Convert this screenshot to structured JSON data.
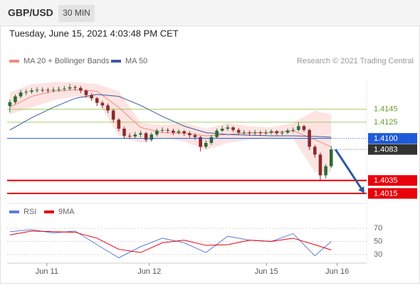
{
  "chart_data": {
    "type": "candlestick",
    "title": "GBP/USD",
    "timeframe": "30 MIN",
    "subtitle": "Tuesday, June 15, 2021 4:03:48 PM CET",
    "credit": "Research © 2021 Trading Central",
    "up_color": "#2d6a36",
    "down_color": "#8b2a2a",
    "xlim": [
      -0.5,
      65.5
    ],
    "xticks": [
      {
        "value": 6.8,
        "label": "Jun 11"
      },
      {
        "value": 25.6,
        "label": "Jun 12"
      },
      {
        "value": 47.1,
        "label": "Jun 15"
      },
      {
        "value": 60.1,
        "label": "Jun 16"
      }
    ],
    "ylim": [
      1.4004,
      1.4193
    ],
    "x": [
      0,
      1,
      2,
      3,
      4,
      5,
      6,
      7,
      8,
      9,
      10,
      11,
      12,
      13,
      14,
      15,
      16,
      17,
      18,
      19,
      20,
      21,
      22,
      23,
      24,
      25,
      26,
      27,
      28,
      29,
      30,
      31,
      32,
      33,
      34,
      35,
      36,
      37,
      38,
      39,
      40,
      41,
      42,
      43,
      44,
      45,
      46,
      47,
      48,
      49,
      50,
      51,
      52,
      53,
      54,
      55,
      56,
      57,
      58,
      59
    ],
    "open": [
      1.415,
      1.4156,
      1.4165,
      1.4171,
      1.4172,
      1.4174,
      1.4175,
      1.4175,
      1.4174,
      1.4175,
      1.4176,
      1.4177,
      1.4179,
      1.4178,
      1.4174,
      1.4167,
      1.4162,
      1.4155,
      1.4151,
      1.4143,
      1.4129,
      1.4115,
      1.4104,
      1.4103,
      1.4106,
      1.4108,
      1.4098,
      1.4106,
      1.4112,
      1.4113,
      1.4112,
      1.4109,
      1.4111,
      1.4108,
      1.4105,
      1.4102,
      1.4087,
      1.4093,
      1.4102,
      1.4112,
      1.4115,
      1.4117,
      1.4113,
      1.4109,
      1.4109,
      1.4108,
      1.4109,
      1.4108,
      1.4109,
      1.4111,
      1.4108,
      1.4109,
      1.4112,
      1.4113,
      1.4119,
      1.4113,
      1.4087,
      1.4075,
      1.4043,
      1.4057
    ],
    "high": [
      1.416,
      1.4168,
      1.4175,
      1.4176,
      1.4178,
      1.4179,
      1.4179,
      1.4178,
      1.4179,
      1.418,
      1.4181,
      1.4184,
      1.4182,
      1.4181,
      1.4176,
      1.417,
      1.4164,
      1.4158,
      1.4154,
      1.4146,
      1.4131,
      1.4118,
      1.4108,
      1.411,
      1.4112,
      1.411,
      1.4109,
      1.4115,
      1.4117,
      1.4116,
      1.4115,
      1.4114,
      1.4113,
      1.4111,
      1.4108,
      1.4104,
      1.4097,
      1.4105,
      1.4115,
      1.4119,
      1.4121,
      1.4119,
      1.4116,
      1.4113,
      1.4112,
      1.4113,
      1.4112,
      1.4113,
      1.4114,
      1.4113,
      1.4112,
      1.4115,
      1.4117,
      1.4125,
      1.4121,
      1.4115,
      1.409,
      1.4078,
      1.406,
      1.4088
    ],
    "low": [
      1.414,
      1.4153,
      1.4162,
      1.4167,
      1.4169,
      1.4171,
      1.4171,
      1.417,
      1.4171,
      1.4172,
      1.4173,
      1.4174,
      1.4174,
      1.417,
      1.4163,
      1.4158,
      1.415,
      1.4147,
      1.4139,
      1.4125,
      1.4111,
      1.41,
      1.4099,
      1.41,
      1.4102,
      1.4094,
      1.4095,
      1.4103,
      1.4109,
      1.4108,
      1.4105,
      1.4106,
      1.4104,
      1.4101,
      1.4098,
      1.408,
      1.4084,
      1.409,
      1.41,
      1.411,
      1.4112,
      1.411,
      1.4106,
      1.4105,
      1.4104,
      1.4105,
      1.4104,
      1.4105,
      1.4106,
      1.4105,
      1.4105,
      1.4107,
      1.4109,
      1.4111,
      1.411,
      1.4082,
      1.407,
      1.4035,
      1.4038,
      1.4054
    ],
    "close": [
      1.4156,
      1.4165,
      1.4171,
      1.4172,
      1.4174,
      1.4175,
      1.4175,
      1.4174,
      1.4175,
      1.4176,
      1.4177,
      1.4179,
      1.4178,
      1.4174,
      1.4167,
      1.4162,
      1.4155,
      1.4151,
      1.4143,
      1.4129,
      1.4115,
      1.4104,
      1.4103,
      1.4106,
      1.4108,
      1.4098,
      1.4106,
      1.4112,
      1.4113,
      1.4112,
      1.4109,
      1.4111,
      1.4108,
      1.4105,
      1.4102,
      1.4087,
      1.4093,
      1.4102,
      1.4112,
      1.4115,
      1.4117,
      1.4113,
      1.4109,
      1.4109,
      1.4108,
      1.4109,
      1.4108,
      1.4109,
      1.4111,
      1.4108,
      1.4109,
      1.4112,
      1.4113,
      1.4119,
      1.4113,
      1.4087,
      1.4075,
      1.4043,
      1.4057,
      1.4083
    ],
    "overlays": [
      {
        "name": "MA 20 + Bollinger Bands",
        "color": "#f08a84",
        "band_color": "#fde4e2",
        "x": [
          0,
          4,
          8,
          12,
          16,
          20,
          24,
          28,
          32,
          36,
          40,
          44,
          48,
          52,
          56,
          59
        ],
        "values": [
          1.4148,
          1.4165,
          1.4173,
          1.4175,
          1.4173,
          1.4148,
          1.4117,
          1.4109,
          1.4108,
          1.4104,
          1.4106,
          1.4109,
          1.4109,
          1.4112,
          1.4098,
          1.4087
        ],
        "upper": [
          1.4171,
          1.4184,
          1.4187,
          1.4187,
          1.4184,
          1.4173,
          1.4124,
          1.4121,
          1.4124,
          1.4115,
          1.4124,
          1.4119,
          1.4117,
          1.4124,
          1.4143,
          1.4137
        ],
        "lower": [
          1.4137,
          1.4148,
          1.4159,
          1.4165,
          1.4159,
          1.4104,
          1.4093,
          1.4102,
          1.4095,
          1.4082,
          1.4093,
          1.4098,
          1.41,
          1.41,
          1.4048,
          1.4048
        ]
      },
      {
        "name": "MA 50",
        "color": "#3d5a9e",
        "x": [
          0,
          4,
          8,
          12,
          16,
          20,
          24,
          28,
          32,
          36,
          40,
          44,
          48,
          52,
          56,
          59
        ],
        "values": [
          1.4113,
          1.4132,
          1.4148,
          1.4162,
          1.4168,
          1.4165,
          1.4151,
          1.4134,
          1.4119,
          1.4109,
          1.4106,
          1.4105,
          1.4104,
          1.4104,
          1.4103,
          1.4102
        ]
      }
    ],
    "levels": [
      {
        "value": 1.4145,
        "color": "#8cc63f",
        "style": "line"
      },
      {
        "value": 1.4125,
        "color": "#8cc63f",
        "style": "line"
      },
      {
        "value": 1.41,
        "label": "1.4100",
        "color": "#1f5bd8",
        "style": "box"
      },
      {
        "value": 1.4083,
        "color": "#333333",
        "style": "box"
      },
      {
        "value": 1.4035,
        "color": "#e8000b",
        "style": "box"
      },
      {
        "value": 1.4015,
        "color": "#e8000b",
        "style": "box"
      }
    ],
    "rsi": {
      "ylim": [
        19,
        80
      ],
      "yticks": [
        70,
        50,
        30
      ],
      "x": [
        0,
        4,
        8,
        12,
        16,
        20,
        24,
        28,
        32,
        36,
        40,
        44,
        48,
        52,
        56,
        59
      ],
      "series": [
        {
          "name": "RSI",
          "color": "#5b7fd6",
          "values": [
            65,
            68,
            63,
            66,
            45,
            25,
            42,
            55,
            48,
            33,
            58,
            52,
            50,
            62,
            28,
            50
          ]
        },
        {
          "name": "9MA",
          "color": "#e8000b",
          "values": [
            60,
            66,
            65,
            64,
            55,
            38,
            33,
            48,
            52,
            44,
            45,
            52,
            50,
            55,
            45,
            37
          ]
        }
      ]
    }
  }
}
